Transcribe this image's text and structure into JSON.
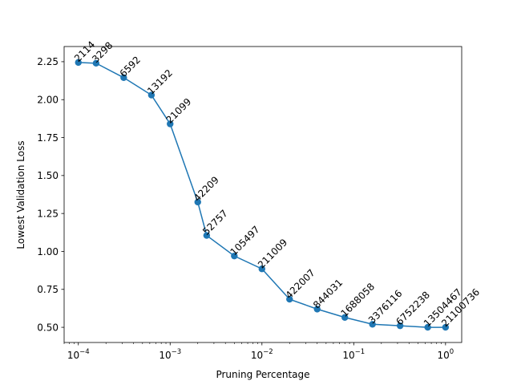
{
  "chart_data": {
    "type": "line",
    "title": "",
    "xlabel": "Pruning Percentage",
    "ylabel": "Lowest Validation Loss",
    "xscale": "log",
    "xlim": [
      7e-05,
      1.5
    ],
    "ylim": [
      0.4,
      2.35
    ],
    "grid": false,
    "color": "#1f77b4",
    "marker": "circle",
    "x_ticks": [
      {
        "value": 0.0001,
        "base": "10",
        "exp": "−4"
      },
      {
        "value": 0.001,
        "base": "10",
        "exp": "−3"
      },
      {
        "value": 0.01,
        "base": "10",
        "exp": "−2"
      },
      {
        "value": 0.1,
        "base": "10",
        "exp": "−1"
      },
      {
        "value": 1,
        "base": "10",
        "exp": "0"
      }
    ],
    "y_ticks": [
      "0.50",
      "0.75",
      "1.00",
      "1.25",
      "1.50",
      "1.75",
      "2.00",
      "2.25"
    ],
    "points": [
      {
        "x": 0.0001,
        "y": 2.245,
        "label": "2114"
      },
      {
        "x": 0.000156,
        "y": 2.24,
        "label": "3298"
      },
      {
        "x": 0.000312,
        "y": 2.145,
        "label": "6592"
      },
      {
        "x": 0.000625,
        "y": 2.03,
        "label": "13192"
      },
      {
        "x": 0.001,
        "y": 1.84,
        "label": "21099"
      },
      {
        "x": 0.002,
        "y": 1.325,
        "label": "42209"
      },
      {
        "x": 0.0025,
        "y": 1.105,
        "label": "52757"
      },
      {
        "x": 0.005,
        "y": 0.97,
        "label": "105497"
      },
      {
        "x": 0.01,
        "y": 0.885,
        "label": "211009"
      },
      {
        "x": 0.02,
        "y": 0.685,
        "label": "422007"
      },
      {
        "x": 0.04,
        "y": 0.62,
        "label": "844031"
      },
      {
        "x": 0.08,
        "y": 0.565,
        "label": "1688058"
      },
      {
        "x": 0.16,
        "y": 0.52,
        "label": "3376116"
      },
      {
        "x": 0.32,
        "y": 0.51,
        "label": "6752238"
      },
      {
        "x": 0.64,
        "y": 0.5,
        "label": "13504467"
      },
      {
        "x": 1.0,
        "y": 0.5,
        "label": "21100736"
      }
    ]
  }
}
